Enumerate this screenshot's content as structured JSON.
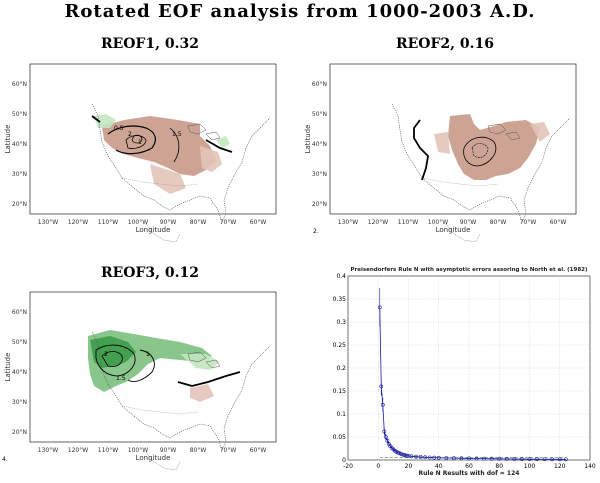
{
  "page": {
    "title": "Rotated EOF analysis from 1000-2003 A.D."
  },
  "maps": [
    {
      "id": "reof1",
      "title": "REOF1, 0.32",
      "contour_labels": [
        "0.5",
        "1",
        "2",
        "1.5"
      ]
    },
    {
      "id": "reof2",
      "title": "REOF2, 0.16",
      "contour_labels": []
    },
    {
      "id": "reof3",
      "title": "REOF3, 0.12",
      "contour_labels": [
        "2",
        "1",
        "1.5"
      ]
    }
  ],
  "map_axes": {
    "xlabel": "Longitude",
    "ylabel": "Latitude",
    "lon_ticks": [
      "130°W",
      "120°W",
      "110°W",
      "100°W",
      "90°W",
      "80°W",
      "70°W",
      "60°W"
    ],
    "lat_ticks": [
      "60°N",
      "50°N",
      "40°N",
      "30°N",
      "20°N"
    ]
  },
  "panel_markers": [
    "2.",
    "4."
  ],
  "colors": {
    "warm": "#c89a88",
    "warm_light": "#e3c4b8",
    "cool": "#3d9b4a",
    "cool_mid": "#7cc080",
    "cool_light": "#c2e6c0",
    "series": "#1a1aa6"
  },
  "chart_data": {
    "type": "scatter",
    "title": "Preisendorfers Rule N with asymptotic errors assoring to North et al. (1982)",
    "xlabel": "Rule N Results with dof = 124",
    "ylabel": "",
    "xlim": [
      -20,
      140
    ],
    "ylim": [
      0,
      0.4
    ],
    "xticks": [
      -20,
      0,
      20,
      40,
      60,
      80,
      100,
      120,
      140
    ],
    "yticks": [
      0,
      0.05,
      0.1,
      0.15,
      0.2,
      0.25,
      0.3,
      0.35,
      0.4
    ],
    "grid": true,
    "series": [
      {
        "x": [
          1,
          2,
          3,
          4,
          5,
          6,
          7,
          8,
          9,
          10,
          11,
          12,
          13,
          14,
          15,
          16,
          17,
          18,
          19,
          20,
          22,
          25,
          28,
          31,
          34,
          37,
          40,
          45,
          50,
          55,
          60,
          65,
          70,
          75,
          80,
          85,
          90,
          95,
          100,
          105,
          110,
          115,
          120,
          124
        ],
        "y": [
          0.332,
          0.16,
          0.12,
          0.062,
          0.05,
          0.042,
          0.035,
          0.03,
          0.026,
          0.023,
          0.02,
          0.018,
          0.016,
          0.015,
          0.013,
          0.012,
          0.011,
          0.01,
          0.0095,
          0.009,
          0.008,
          0.0072,
          0.0065,
          0.006,
          0.0055,
          0.005,
          0.0048,
          0.0044,
          0.004,
          0.0037,
          0.0034,
          0.0032,
          0.003,
          0.0028,
          0.0026,
          0.0024,
          0.0022,
          0.002,
          0.0019,
          0.0018,
          0.0017,
          0.0016,
          0.0015,
          0.0014
        ],
        "errors": [
          0.042,
          0.02,
          0.015,
          0.008,
          0.006,
          0.005,
          0.004,
          0.0035,
          0.003,
          0.003,
          0.0025,
          0.002,
          0.002,
          0.002,
          0.0015,
          0.0015,
          0.0014,
          0.0013,
          0.0012,
          0.0011,
          0.001,
          0.001,
          0.0009,
          0.0008,
          0.0007,
          0.0007,
          0.0006,
          0.0006,
          0.0005,
          0.0005,
          0.0005,
          0.0004,
          0.0004,
          0.0004,
          0.0004,
          0.0003,
          0.0003,
          0.0003,
          0.0003,
          0.0002,
          0.0002,
          0.0002,
          0.0002,
          0.0002
        ]
      }
    ],
    "dashed_line_y": 0.005
  }
}
